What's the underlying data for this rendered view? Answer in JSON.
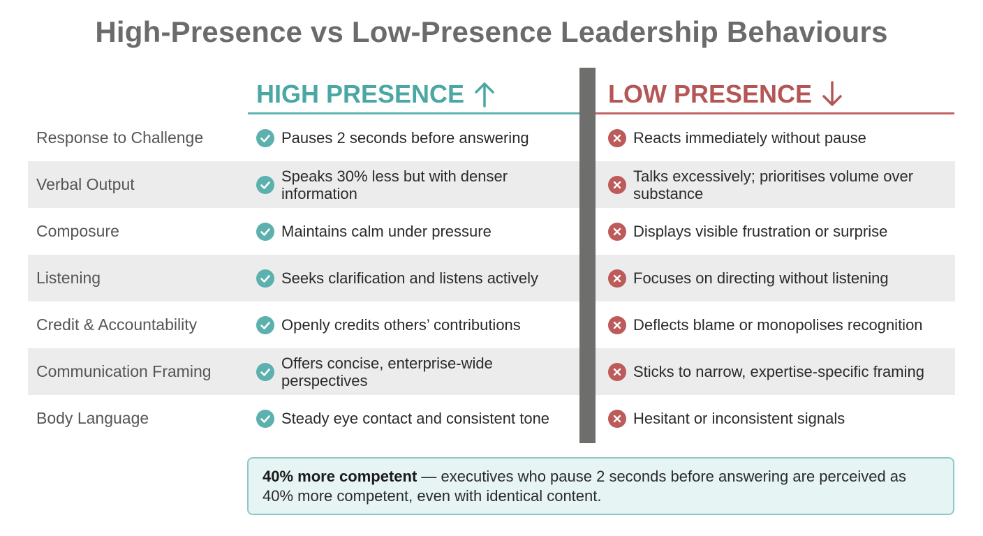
{
  "title": "High-Presence vs Low-Presence Leadership Behaviours",
  "columns": {
    "high": {
      "label": "HIGH PRESENCE",
      "icon": "arrow-up-icon",
      "color": "#4aa7a4"
    },
    "low": {
      "label": "LOW PRESENCE",
      "icon": "arrow-down-icon",
      "color": "#b55656"
    }
  },
  "rows": [
    {
      "category": "Response to Challenge",
      "high": "Pauses 2 seconds before answering",
      "low": "Reacts immediately without pause"
    },
    {
      "category": "Verbal Output",
      "high": "Speaks 30% less but with denser information",
      "low": "Talks excessively; prioritises volume over substance"
    },
    {
      "category": "Composure",
      "high": "Maintains calm under pressure",
      "low": "Displays visible frustration or surprise"
    },
    {
      "category": "Listening",
      "high": "Seeks clarification and listens actively",
      "low": "Focuses on directing without listening"
    },
    {
      "category": "Credit & Accountability",
      "high": "Openly credits others’ contributions",
      "low": "Deflects blame or monopolises recognition"
    },
    {
      "category": "Communication Framing",
      "high": "Offers concise, enterprise-wide perspectives",
      "low": "Sticks to narrow, expertise-specific framing"
    },
    {
      "category": "Body Language",
      "high": "Steady eye contact and consistent tone",
      "low": "Hesitant or inconsistent signals"
    }
  ],
  "note": {
    "bold": "40% more competent",
    "text": " — executives who pause 2 seconds before answering are perceived as 40% more competent, even with identical content."
  }
}
